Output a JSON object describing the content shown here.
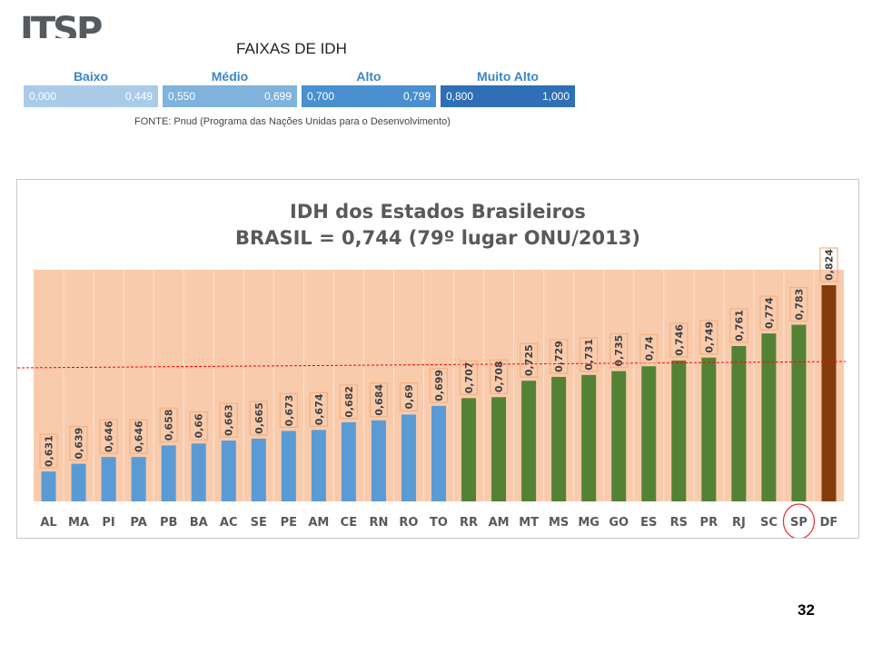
{
  "logo": {
    "text": "ITSP"
  },
  "faixas": {
    "title": "FAIXAS DE IDH",
    "bands": [
      {
        "name": "Baixo",
        "min": "0,000",
        "max": "0,449",
        "color": "#a9cbe8"
      },
      {
        "name": "Médio",
        "min": "0,550",
        "max": "0,699",
        "color": "#7fb2dc"
      },
      {
        "name": "Alto",
        "min": "0,700",
        "max": "0,799",
        "color": "#4a90cf"
      },
      {
        "name": "Muito Alto",
        "min": "0,800",
        "max": "1,000",
        "color": "#2f6fb6"
      }
    ],
    "source": "FONTE: Pnud (Programa das Nações Unidas para o Desenvolvimento)"
  },
  "page_number": "32",
  "chart_data": {
    "type": "bar",
    "title": "IDH dos Estados Brasileiros",
    "subtitle": "BRASIL = 0,744 (79º lugar ONU/2013)",
    "reference_value": 0.744,
    "highlighted_category": "SP",
    "categories": [
      "AL",
      "MA",
      "PI",
      "PA",
      "PB",
      "BA",
      "AC",
      "SE",
      "PE",
      "AM",
      "CE",
      "RN",
      "RO",
      "TO",
      "RR",
      "AM",
      "MT",
      "MS",
      "MG",
      "GO",
      "ES",
      "RS",
      "PR",
      "RJ",
      "SC",
      "SP",
      "DF"
    ],
    "values": [
      0.631,
      0.639,
      0.646,
      0.646,
      0.658,
      0.66,
      0.663,
      0.665,
      0.673,
      0.674,
      0.682,
      0.684,
      0.69,
      0.699,
      0.707,
      0.708,
      0.725,
      0.729,
      0.731,
      0.735,
      0.74,
      0.746,
      0.749,
      0.761,
      0.774,
      0.783,
      0.824
    ],
    "labels": [
      "0,631",
      "0,639",
      "0,646",
      "0,646",
      "0,658",
      "0,66",
      "0,663",
      "0,665",
      "0,673",
      "0,674",
      "0,682",
      "0,684",
      "0,69",
      "0,699",
      "0,707",
      "0,708",
      "0,725",
      "0,729",
      "0,731",
      "0,735",
      "0,74",
      "0,746",
      "0,749",
      "0,761",
      "0,774",
      "0,783",
      "0,824"
    ],
    "colors": {
      "medio": "#5b9bd5",
      "alto": "#548235",
      "muito_alto": "#843c0c",
      "plot_background": "#f8cbad",
      "label_border": "#f4b183",
      "reference_line": "#ff0000",
      "highlight_circle": "#e03030"
    },
    "ylim": [
      0.6,
      0.84
    ],
    "grid": false,
    "legend": "none"
  }
}
